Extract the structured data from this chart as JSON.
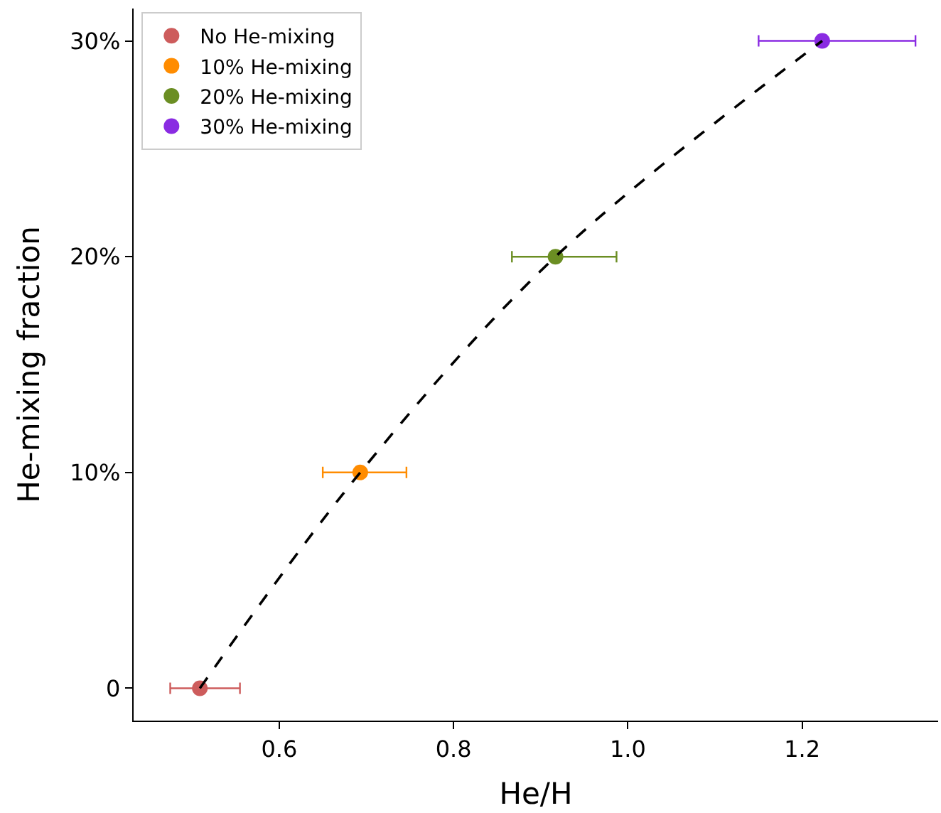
{
  "chart_data": {
    "type": "scatter",
    "xlabel": "He/H",
    "ylabel": "He-mixing fraction",
    "series": [
      {
        "name": "No He-mixing",
        "color": "#cd5c5c",
        "x": [
          0.509
        ],
        "values": [
          0
        ],
        "xerrors": [
          [
            0.475,
            0.555
          ]
        ]
      },
      {
        "name": "10% He-mixing",
        "color": "#ff8c00",
        "x": [
          0.693
        ],
        "values": [
          10
        ],
        "xerrors": [
          [
            0.65,
            0.746
          ]
        ]
      },
      {
        "name": "20% He-mixing",
        "color": "#6b8e23",
        "x": [
          0.917
        ],
        "values": [
          20
        ],
        "xerrors": [
          [
            0.867,
            0.987
          ]
        ]
      },
      {
        "name": "30% He-mixing",
        "color": "#8a2be2",
        "x": [
          1.223
        ],
        "values": [
          30
        ],
        "xerrors": [
          [
            1.15,
            1.33
          ]
        ]
      },
      {
        "type": "line",
        "color": "#000000",
        "line_style": "dashed",
        "marker": "none",
        "x": [
          0.509,
          0.693,
          0.917,
          1.223
        ],
        "values": [
          0,
          10,
          20,
          30
        ]
      }
    ],
    "xlim": [
      0.433,
      1.356
    ],
    "ylim": [
      -1.5,
      31.5
    ],
    "xticks": [
      0.6,
      0.8,
      {
        "value": 1,
        "label": "1.0"
      },
      1.2
    ],
    "yticks": [
      0,
      {
        "value": 10,
        "label": "10%"
      },
      {
        "value": 20,
        "label": "20%"
      },
      {
        "value": 30,
        "label": "30%"
      }
    ],
    "marker": "circle",
    "grid": false,
    "legend": "top left"
  }
}
